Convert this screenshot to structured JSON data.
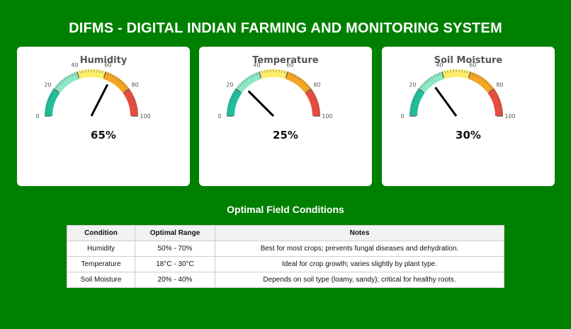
{
  "title": "DIFMS - DIGITAL INDIAN FARMING AND MONITORING SYSTEM",
  "gauges": [
    {
      "title": "Humidity",
      "value": 65,
      "display": "65%"
    },
    {
      "title": "Temperature",
      "value": 25,
      "display": "25%"
    },
    {
      "title": "Soil Moisture",
      "value": 30,
      "display": "30%"
    }
  ],
  "gauge_scale": {
    "min": 0,
    "max": 100,
    "ticks": [
      "0",
      "20",
      "40",
      "60",
      "80",
      "100"
    ]
  },
  "gauge_colors": [
    "#1fbf9a",
    "#8de8c4",
    "#ffee6a",
    "#f5a623",
    "#e74c3c"
  ],
  "table": {
    "title": "Optimal Field Conditions",
    "headers": [
      "Condition",
      "Optimal Range",
      "Notes"
    ],
    "rows": [
      [
        "Humidity",
        "50% - 70%",
        "Best for most crops; prevents fungal diseases and dehydration."
      ],
      [
        "Temperature",
        "18°C - 30°C",
        "Ideal for crop growth; varies slightly by plant type."
      ],
      [
        "Soil Moisture",
        "20% - 40%",
        "Depends on soil type (loamy, sandy); critical for healthy roots."
      ]
    ]
  }
}
